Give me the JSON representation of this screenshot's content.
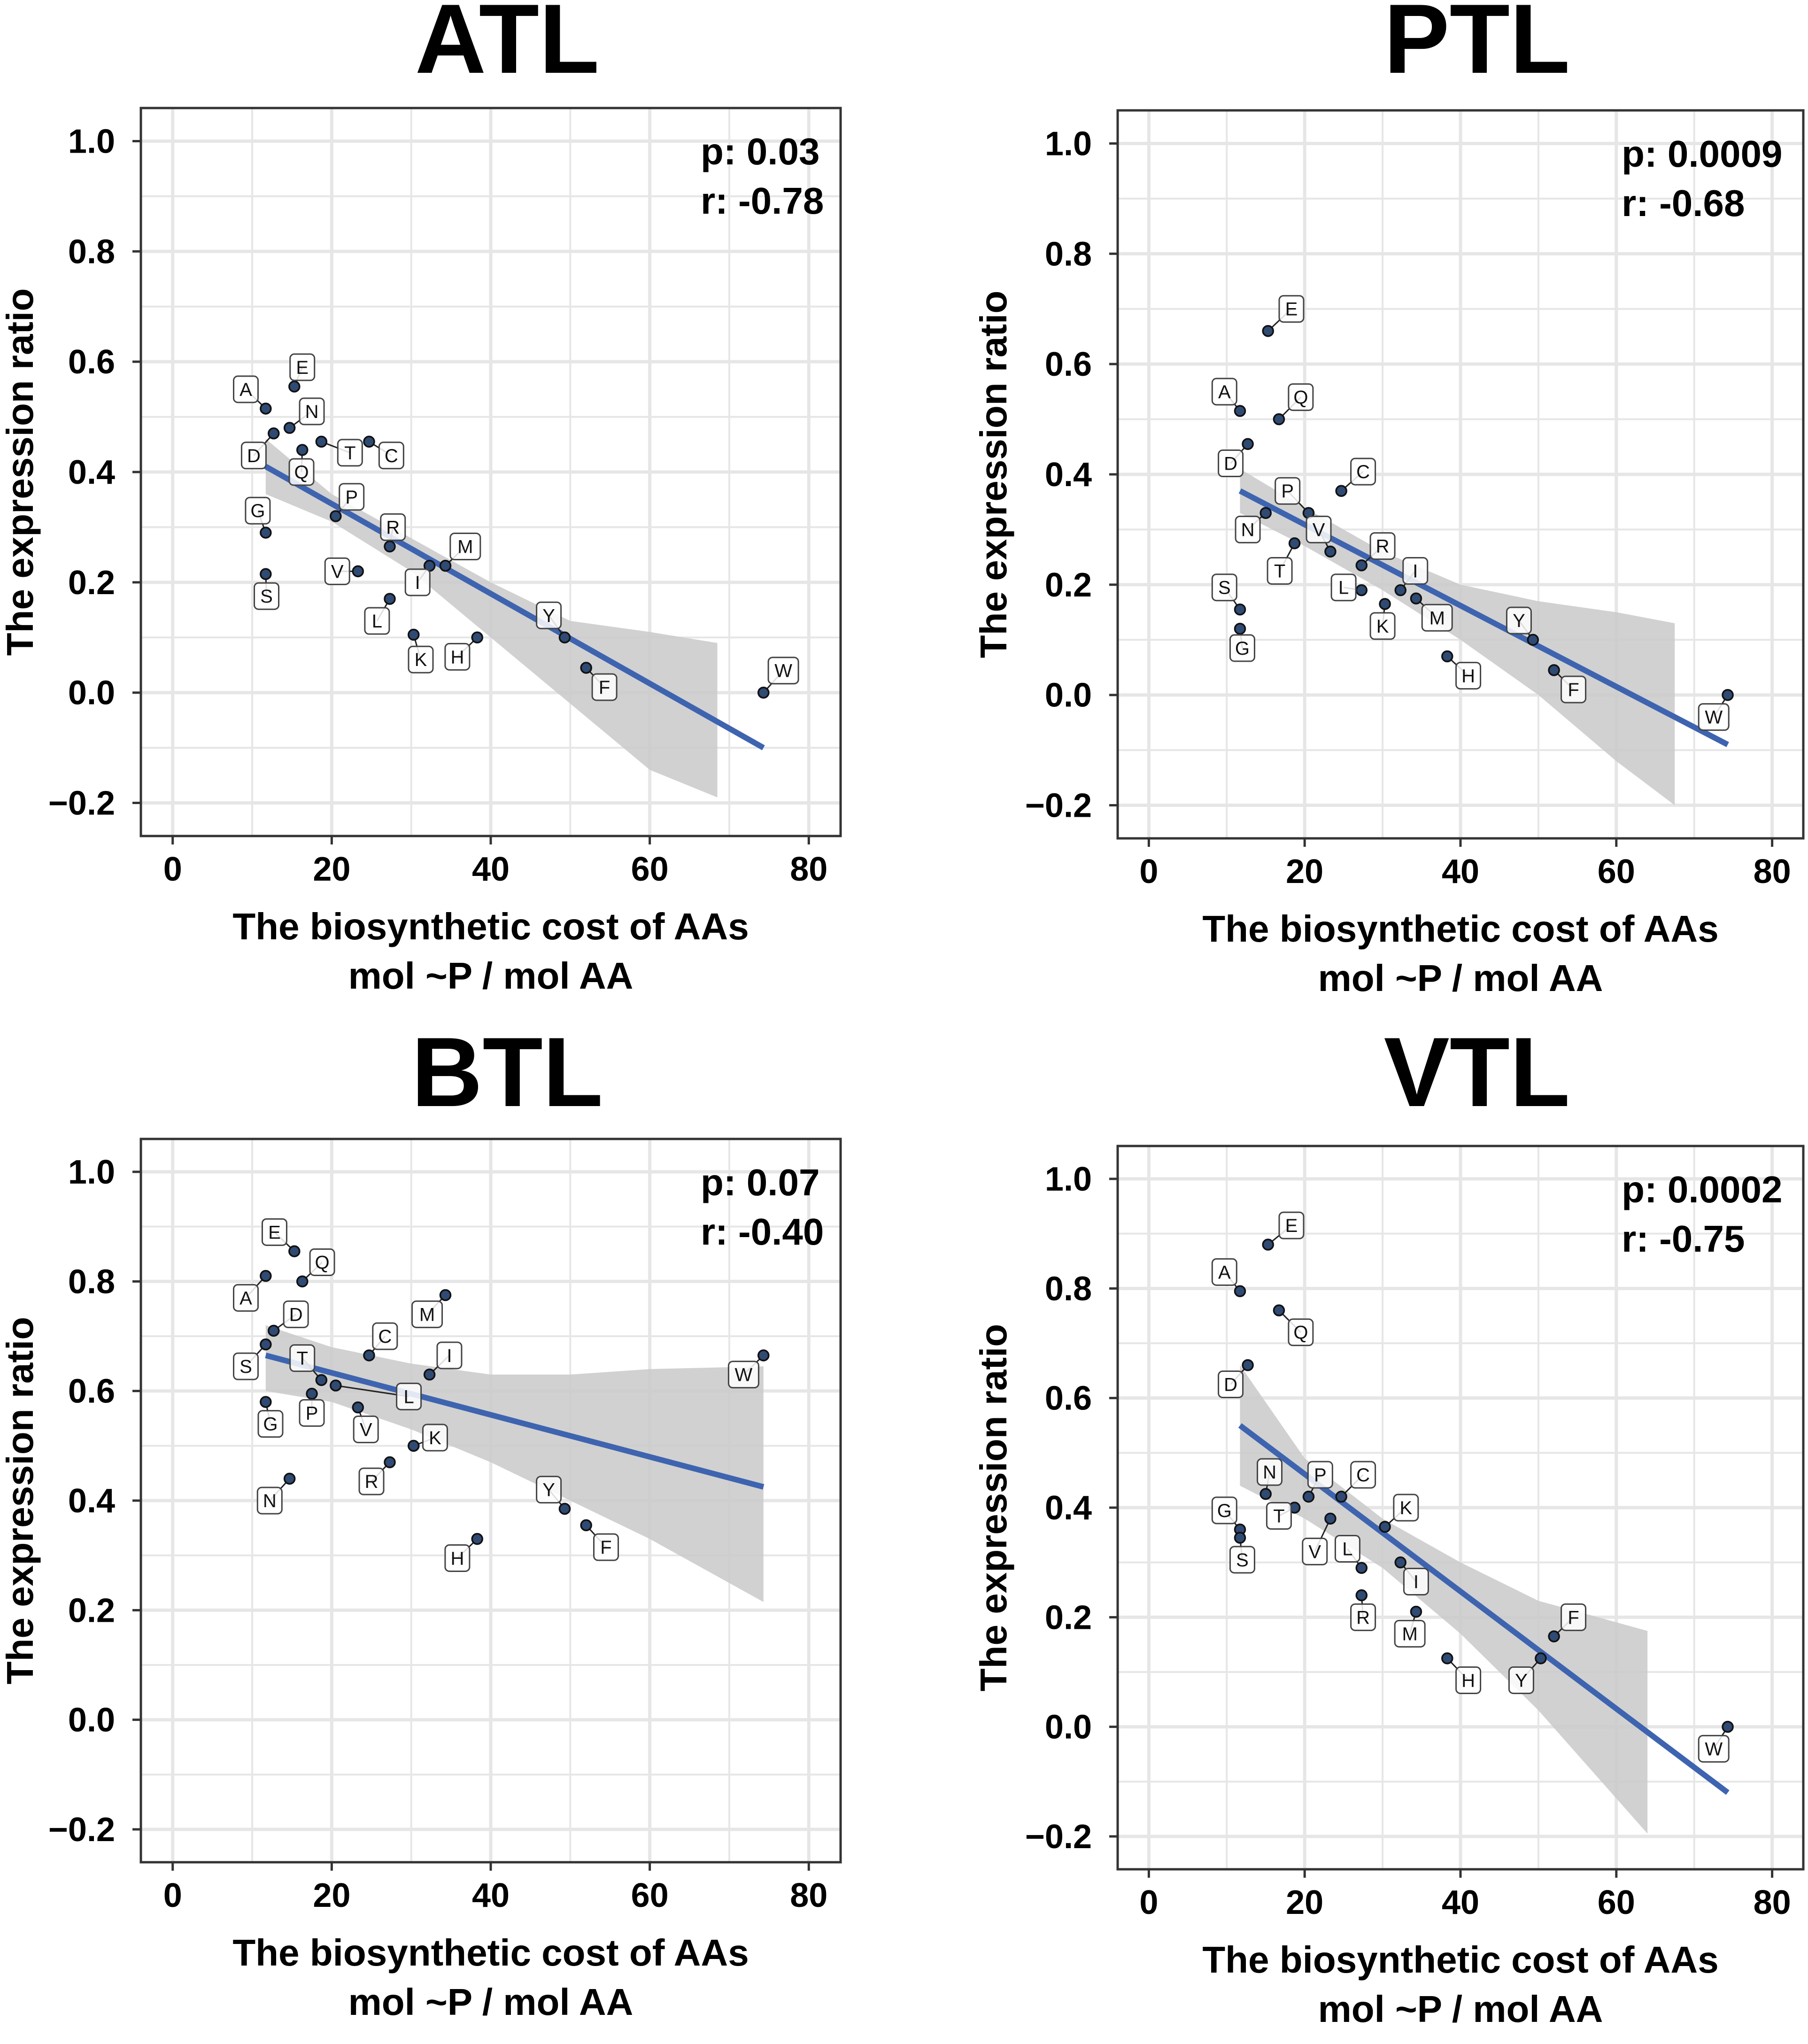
{
  "figure": {
    "colors": {
      "background": "#ffffff",
      "panel_border": "#333333",
      "grid": "#e6e6e6",
      "fit_line": "#3e64b0",
      "ci_band": "#c9c9c9",
      "point_fill": "#2f4a73",
      "point_edge": "#111111",
      "label_box": "#ffffff",
      "label_border": "#444444",
      "text": "#000000"
    }
  },
  "chart_data": [
    {
      "type": "scatter",
      "title": "ATL",
      "xlabel": "The biosynthetic cost of AAs",
      "xlabel2": "mol ~P / mol AA",
      "ylabel": "The expression ratio",
      "xlim": [
        -4,
        84
      ],
      "ylim": [
        -0.26,
        1.06
      ],
      "xticks": [
        0,
        20,
        40,
        60,
        80
      ],
      "yticks": [
        -0.2,
        0.0,
        0.2,
        0.4,
        0.6,
        0.8,
        1.0
      ],
      "xtick_labels": [
        "0",
        "20",
        "40",
        "60",
        "80"
      ],
      "ytick_labels": [
        "−0.2",
        "0.0",
        "0.2",
        "0.4",
        "0.6",
        "0.8",
        "1.0"
      ],
      "stats": {
        "p": "p: 0.03",
        "r": "r: -0.78"
      },
      "fit": {
        "x0": 11.7,
        "y0": 0.41,
        "x1": 74.3,
        "y1": -0.1
      },
      "ci": {
        "x": [
          11.7,
          20,
          30,
          40,
          50,
          60,
          68.5
        ],
        "lower": [
          0.36,
          0.31,
          0.22,
          0.1,
          -0.02,
          -0.14,
          -0.19
        ],
        "upper": [
          0.46,
          0.36,
          0.28,
          0.2,
          0.13,
          0.11,
          0.09
        ]
      },
      "points": [
        {
          "label": "A",
          "x": 11.7,
          "y": 0.515,
          "lx": 9.2,
          "ly": 0.55
        },
        {
          "label": "E",
          "x": 15.3,
          "y": 0.555,
          "lx": 16.3,
          "ly": 0.59
        },
        {
          "label": "N",
          "x": 14.7,
          "y": 0.48,
          "lx": 17.5,
          "ly": 0.51
        },
        {
          "label": "D",
          "x": 12.7,
          "y": 0.47,
          "lx": 10.2,
          "ly": 0.43
        },
        {
          "label": "T",
          "x": 18.7,
          "y": 0.455,
          "lx": 22.3,
          "ly": 0.435
        },
        {
          "label": "C",
          "x": 24.7,
          "y": 0.455,
          "lx": 27.5,
          "ly": 0.43
        },
        {
          "label": "Q",
          "x": 16.3,
          "y": 0.44,
          "lx": 16.2,
          "ly": 0.4
        },
        {
          "label": "P",
          "x": 20.5,
          "y": 0.32,
          "lx": 22.5,
          "ly": 0.355
        },
        {
          "label": "G",
          "x": 11.7,
          "y": 0.29,
          "lx": 10.7,
          "ly": 0.33
        },
        {
          "label": "R",
          "x": 27.3,
          "y": 0.265,
          "lx": 27.7,
          "ly": 0.3
        },
        {
          "label": "M",
          "x": 34.3,
          "y": 0.23,
          "lx": 36.8,
          "ly": 0.265
        },
        {
          "label": "V",
          "x": 23.3,
          "y": 0.22,
          "lx": 20.7,
          "ly": 0.22
        },
        {
          "label": "S",
          "x": 11.7,
          "y": 0.215,
          "lx": 11.8,
          "ly": 0.175
        },
        {
          "label": "I",
          "x": 32.3,
          "y": 0.23,
          "lx": 30.8,
          "ly": 0.2
        },
        {
          "label": "L",
          "x": 27.3,
          "y": 0.17,
          "lx": 25.7,
          "ly": 0.13
        },
        {
          "label": "Y",
          "x": 49.3,
          "y": 0.1,
          "lx": 47.3,
          "ly": 0.14
        },
        {
          "label": "K",
          "x": 30.3,
          "y": 0.105,
          "lx": 31.2,
          "ly": 0.06
        },
        {
          "label": "H",
          "x": 38.3,
          "y": 0.1,
          "lx": 35.8,
          "ly": 0.065
        },
        {
          "label": "F",
          "x": 52.0,
          "y": 0.045,
          "lx": 54.3,
          "ly": 0.01
        },
        {
          "label": "W",
          "x": 74.3,
          "y": 0.0,
          "lx": 76.8,
          "ly": 0.04
        }
      ]
    },
    {
      "type": "scatter",
      "title": "PTL",
      "xlabel": "The biosynthetic cost of AAs",
      "xlabel2": "mol ~P / mol AA",
      "ylabel": "The expression ratio",
      "xlim": [
        -4,
        84
      ],
      "ylim": [
        -0.26,
        1.06
      ],
      "xticks": [
        0,
        20,
        40,
        60,
        80
      ],
      "yticks": [
        -0.2,
        0.0,
        0.2,
        0.4,
        0.6,
        0.8,
        1.0
      ],
      "xtick_labels": [
        "0",
        "20",
        "40",
        "60",
        "80"
      ],
      "ytick_labels": [
        "−0.2",
        "0.0",
        "0.2",
        "0.4",
        "0.6",
        "0.8",
        "1.0"
      ],
      "stats": {
        "p": "p: 0.0009",
        "r": "r: -0.68"
      },
      "fit": {
        "x0": 11.7,
        "y0": 0.37,
        "x1": 74.3,
        "y1": -0.09
      },
      "ci": {
        "x": [
          11.7,
          20,
          30,
          40,
          50,
          60,
          67.5
        ],
        "lower": [
          0.33,
          0.27,
          0.19,
          0.1,
          0.0,
          -0.12,
          -0.2
        ],
        "upper": [
          0.41,
          0.34,
          0.26,
          0.2,
          0.17,
          0.15,
          0.13
        ]
      },
      "points": [
        {
          "label": "E",
          "x": 15.3,
          "y": 0.66,
          "lx": 18.3,
          "ly": 0.7
        },
        {
          "label": "A",
          "x": 11.7,
          "y": 0.515,
          "lx": 9.7,
          "ly": 0.55
        },
        {
          "label": "Q",
          "x": 16.7,
          "y": 0.5,
          "lx": 19.5,
          "ly": 0.54
        },
        {
          "label": "D",
          "x": 12.7,
          "y": 0.455,
          "lx": 10.5,
          "ly": 0.42
        },
        {
          "label": "C",
          "x": 24.7,
          "y": 0.37,
          "lx": 27.5,
          "ly": 0.405
        },
        {
          "label": "P",
          "x": 20.5,
          "y": 0.33,
          "lx": 17.8,
          "ly": 0.37
        },
        {
          "label": "N",
          "x": 15.0,
          "y": 0.33,
          "lx": 12.7,
          "ly": 0.3
        },
        {
          "label": "V",
          "x": 23.3,
          "y": 0.26,
          "lx": 21.8,
          "ly": 0.3
        },
        {
          "label": "R",
          "x": 27.3,
          "y": 0.235,
          "lx": 30.0,
          "ly": 0.27
        },
        {
          "label": "T",
          "x": 18.7,
          "y": 0.275,
          "lx": 16.8,
          "ly": 0.225
        },
        {
          "label": "I",
          "x": 32.3,
          "y": 0.19,
          "lx": 34.2,
          "ly": 0.225
        },
        {
          "label": "S",
          "x": 11.7,
          "y": 0.155,
          "lx": 9.7,
          "ly": 0.195
        },
        {
          "label": "L",
          "x": 27.3,
          "y": 0.19,
          "lx": 25.0,
          "ly": 0.195
        },
        {
          "label": "M",
          "x": 34.3,
          "y": 0.175,
          "lx": 37.0,
          "ly": 0.14
        },
        {
          "label": "K",
          "x": 30.3,
          "y": 0.165,
          "lx": 30.0,
          "ly": 0.125
        },
        {
          "label": "Y",
          "x": 49.3,
          "y": 0.1,
          "lx": 47.5,
          "ly": 0.135
        },
        {
          "label": "G",
          "x": 11.7,
          "y": 0.12,
          "lx": 12.0,
          "ly": 0.085
        },
        {
          "label": "H",
          "x": 38.3,
          "y": 0.07,
          "lx": 41.0,
          "ly": 0.035
        },
        {
          "label": "F",
          "x": 52.0,
          "y": 0.045,
          "lx": 54.5,
          "ly": 0.01
        },
        {
          "label": "W",
          "x": 74.3,
          "y": 0.0,
          "lx": 72.5,
          "ly": -0.04
        }
      ]
    },
    {
      "type": "scatter",
      "title": "BTL",
      "xlabel": "The biosynthetic cost of AAs",
      "xlabel2": "mol ~P / mol AA",
      "ylabel": "The expression ratio",
      "xlim": [
        -4,
        84
      ],
      "ylim": [
        -0.26,
        1.06
      ],
      "xticks": [
        0,
        20,
        40,
        60,
        80
      ],
      "yticks": [
        -0.2,
        0.0,
        0.2,
        0.4,
        0.6,
        0.8,
        1.0
      ],
      "xtick_labels": [
        "0",
        "20",
        "40",
        "60",
        "80"
      ],
      "ytick_labels": [
        "−0.2",
        "0.0",
        "0.2",
        "0.4",
        "0.6",
        "0.8",
        "1.0"
      ],
      "stats": {
        "p": "p: 0.07",
        "r": "r: -0.40"
      },
      "fit": {
        "x0": 11.7,
        "y0": 0.665,
        "x1": 74.3,
        "y1": 0.425
      },
      "ci": {
        "x": [
          11.7,
          20,
          30,
          40,
          50,
          60,
          74.3
        ],
        "lower": [
          0.6,
          0.58,
          0.53,
          0.47,
          0.4,
          0.33,
          0.215
        ],
        "upper": [
          0.72,
          0.68,
          0.65,
          0.63,
          0.63,
          0.64,
          0.645
        ]
      },
      "points": [
        {
          "label": "E",
          "x": 15.3,
          "y": 0.855,
          "lx": 12.8,
          "ly": 0.89
        },
        {
          "label": "Q",
          "x": 16.3,
          "y": 0.8,
          "lx": 18.8,
          "ly": 0.835
        },
        {
          "label": "A",
          "x": 11.7,
          "y": 0.81,
          "lx": 9.2,
          "ly": 0.77
        },
        {
          "label": "D",
          "x": 12.7,
          "y": 0.71,
          "lx": 15.5,
          "ly": 0.74
        },
        {
          "label": "M",
          "x": 34.3,
          "y": 0.775,
          "lx": 32.0,
          "ly": 0.74
        },
        {
          "label": "C",
          "x": 24.7,
          "y": 0.665,
          "lx": 26.7,
          "ly": 0.7
        },
        {
          "label": "I",
          "x": 32.3,
          "y": 0.63,
          "lx": 34.8,
          "ly": 0.665
        },
        {
          "label": "S",
          "x": 11.7,
          "y": 0.685,
          "lx": 9.2,
          "ly": 0.645
        },
        {
          "label": "T",
          "x": 18.7,
          "y": 0.62,
          "lx": 16.3,
          "ly": 0.66
        },
        {
          "label": "W",
          "x": 74.3,
          "y": 0.665,
          "lx": 71.8,
          "ly": 0.63
        },
        {
          "label": "L",
          "x": 20.5,
          "y": 0.61,
          "lx": 29.7,
          "ly": 0.59
        },
        {
          "label": "P",
          "x": 17.5,
          "y": 0.595,
          "lx": 17.5,
          "ly": 0.56
        },
        {
          "label": "G",
          "x": 11.7,
          "y": 0.58,
          "lx": 12.3,
          "ly": 0.54
        },
        {
          "label": "V",
          "x": 23.3,
          "y": 0.57,
          "lx": 24.3,
          "ly": 0.53
        },
        {
          "label": "K",
          "x": 30.3,
          "y": 0.5,
          "lx": 33.0,
          "ly": 0.515
        },
        {
          "label": "R",
          "x": 27.3,
          "y": 0.47,
          "lx": 25.0,
          "ly": 0.435
        },
        {
          "label": "N",
          "x": 14.7,
          "y": 0.44,
          "lx": 12.2,
          "ly": 0.4
        },
        {
          "label": "Y",
          "x": 49.3,
          "y": 0.385,
          "lx": 47.3,
          "ly": 0.42
        },
        {
          "label": "F",
          "x": 52.0,
          "y": 0.355,
          "lx": 54.5,
          "ly": 0.315
        },
        {
          "label": "H",
          "x": 38.3,
          "y": 0.33,
          "lx": 35.8,
          "ly": 0.295
        }
      ]
    },
    {
      "type": "scatter",
      "title": "VTL",
      "xlabel": "The biosynthetic cost of AAs",
      "xlabel2": "mol ~P / mol AA",
      "ylabel": "The expression ratio",
      "xlim": [
        -4,
        84
      ],
      "ylim": [
        -0.26,
        1.06
      ],
      "xticks": [
        0,
        20,
        40,
        60,
        80
      ],
      "yticks": [
        -0.2,
        0.0,
        0.2,
        0.4,
        0.6,
        0.8,
        1.0
      ],
      "xtick_labels": [
        "0",
        "20",
        "40",
        "60",
        "80"
      ],
      "ytick_labels": [
        "−0.2",
        "0.0",
        "0.2",
        "0.4",
        "0.6",
        "0.8",
        "1.0"
      ],
      "stats": {
        "p": "p: 0.0002",
        "r": "r: -0.75"
      },
      "fit": {
        "x0": 11.7,
        "y0": 0.55,
        "x1": 74.3,
        "y1": -0.12
      },
      "ci": {
        "x": [
          11.7,
          20,
          30,
          40,
          50,
          64
        ],
        "lower": [
          0.44,
          0.38,
          0.29,
          0.17,
          0.03,
          -0.195
        ],
        "upper": [
          0.66,
          0.49,
          0.38,
          0.3,
          0.23,
          0.175
        ]
      },
      "points": [
        {
          "label": "E",
          "x": 15.3,
          "y": 0.88,
          "lx": 18.3,
          "ly": 0.915
        },
        {
          "label": "A",
          "x": 11.7,
          "y": 0.795,
          "lx": 9.7,
          "ly": 0.83
        },
        {
          "label": "Q",
          "x": 16.7,
          "y": 0.76,
          "lx": 19.5,
          "ly": 0.72
        },
        {
          "label": "D",
          "x": 12.7,
          "y": 0.66,
          "lx": 10.5,
          "ly": 0.625
        },
        {
          "label": "N",
          "x": 15.0,
          "y": 0.425,
          "lx": 15.5,
          "ly": 0.465
        },
        {
          "label": "P",
          "x": 20.5,
          "y": 0.42,
          "lx": 22.0,
          "ly": 0.46
        },
        {
          "label": "C",
          "x": 24.7,
          "y": 0.42,
          "lx": 27.5,
          "ly": 0.46
        },
        {
          "label": "K",
          "x": 30.3,
          "y": 0.365,
          "lx": 33.0,
          "ly": 0.4
        },
        {
          "label": "G",
          "x": 11.7,
          "y": 0.36,
          "lx": 9.7,
          "ly": 0.395
        },
        {
          "label": "T",
          "x": 18.7,
          "y": 0.4,
          "lx": 16.7,
          "ly": 0.385
        },
        {
          "label": "V",
          "x": 23.3,
          "y": 0.38,
          "lx": 21.3,
          "ly": 0.32
        },
        {
          "label": "S",
          "x": 11.7,
          "y": 0.345,
          "lx": 12.0,
          "ly": 0.305
        },
        {
          "label": "L",
          "x": 27.3,
          "y": 0.29,
          "lx": 25.5,
          "ly": 0.325
        },
        {
          "label": "I",
          "x": 32.3,
          "y": 0.3,
          "lx": 34.3,
          "ly": 0.265
        },
        {
          "label": "R",
          "x": 27.3,
          "y": 0.24,
          "lx": 27.5,
          "ly": 0.2
        },
        {
          "label": "M",
          "x": 34.3,
          "y": 0.21,
          "lx": 33.5,
          "ly": 0.17
        },
        {
          "label": "F",
          "x": 52.0,
          "y": 0.165,
          "lx": 54.5,
          "ly": 0.2
        },
        {
          "label": "Y",
          "x": 50.3,
          "y": 0.125,
          "lx": 47.8,
          "ly": 0.085
        },
        {
          "label": "H",
          "x": 38.3,
          "y": 0.125,
          "lx": 41.0,
          "ly": 0.085
        },
        {
          "label": "W",
          "x": 74.3,
          "y": 0.0,
          "lx": 72.5,
          "ly": -0.04
        }
      ]
    }
  ]
}
